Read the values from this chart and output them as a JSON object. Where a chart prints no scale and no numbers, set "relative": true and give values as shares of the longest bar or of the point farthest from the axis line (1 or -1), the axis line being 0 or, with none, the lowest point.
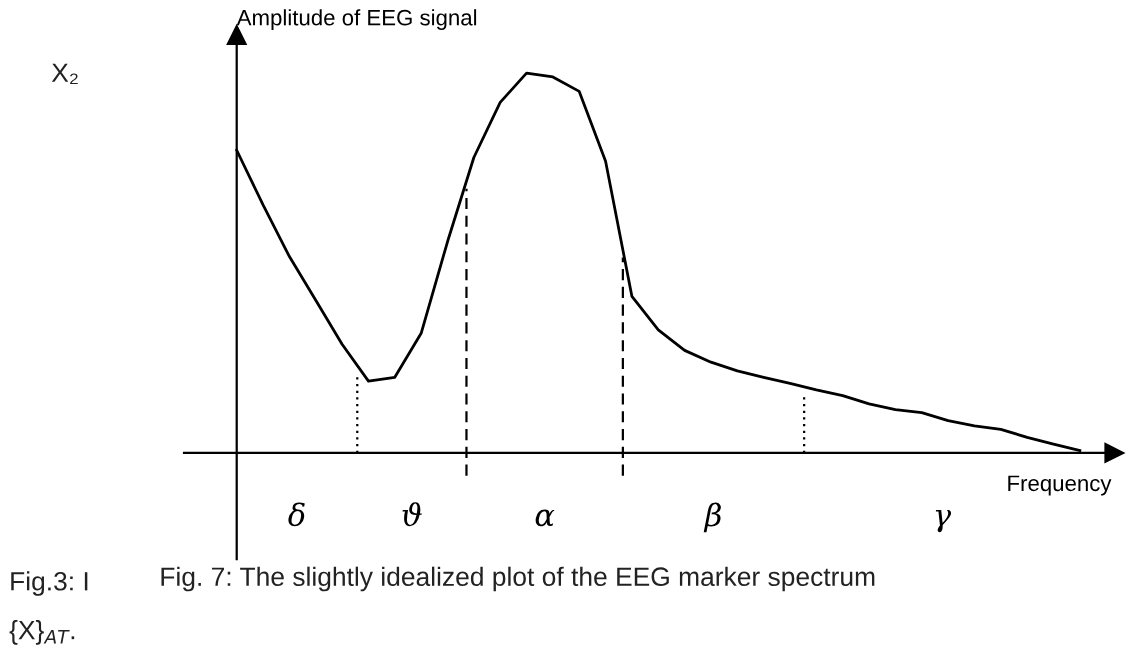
{
  "chart_data": {
    "type": "line",
    "relative": true,
    "title": "Fig. 7: The slightly idealized plot of the EEG marker spectrum",
    "xlabel": "Frequency",
    "ylabel": "Amplitude of EEG signal",
    "categories": [
      null,
      null,
      null,
      null,
      null,
      null,
      null,
      null,
      null,
      null,
      null,
      null,
      null,
      null,
      null,
      null,
      null,
      null,
      null,
      null,
      null,
      null,
      null,
      null,
      null,
      null,
      null,
      null,
      null,
      null,
      null,
      null,
      null
    ],
    "series": [
      {
        "color": "#000000",
        "values": [
          0.797,
          0.653,
          0.517,
          0.402,
          0.286,
          0.189,
          0.199,
          0.315,
          0.556,
          0.778,
          0.923,
          1.0,
          0.99,
          0.952,
          0.768,
          0.412,
          0.324,
          0.27,
          0.239,
          0.216,
          0.199,
          0.183,
          0.166,
          0.151,
          0.129,
          0.114,
          0.106,
          0.085,
          0.071,
          0.062,
          0.041,
          0.023,
          0.006
        ]
      }
    ],
    "annotations": [
      "δ",
      "ϑ",
      "α",
      "β",
      "γ",
      "X₂",
      "Fig.3: I",
      "{X}$_{AT}$."
    ],
    "line_style": "solid",
    "marker": "none",
    "legend": false
  }
}
